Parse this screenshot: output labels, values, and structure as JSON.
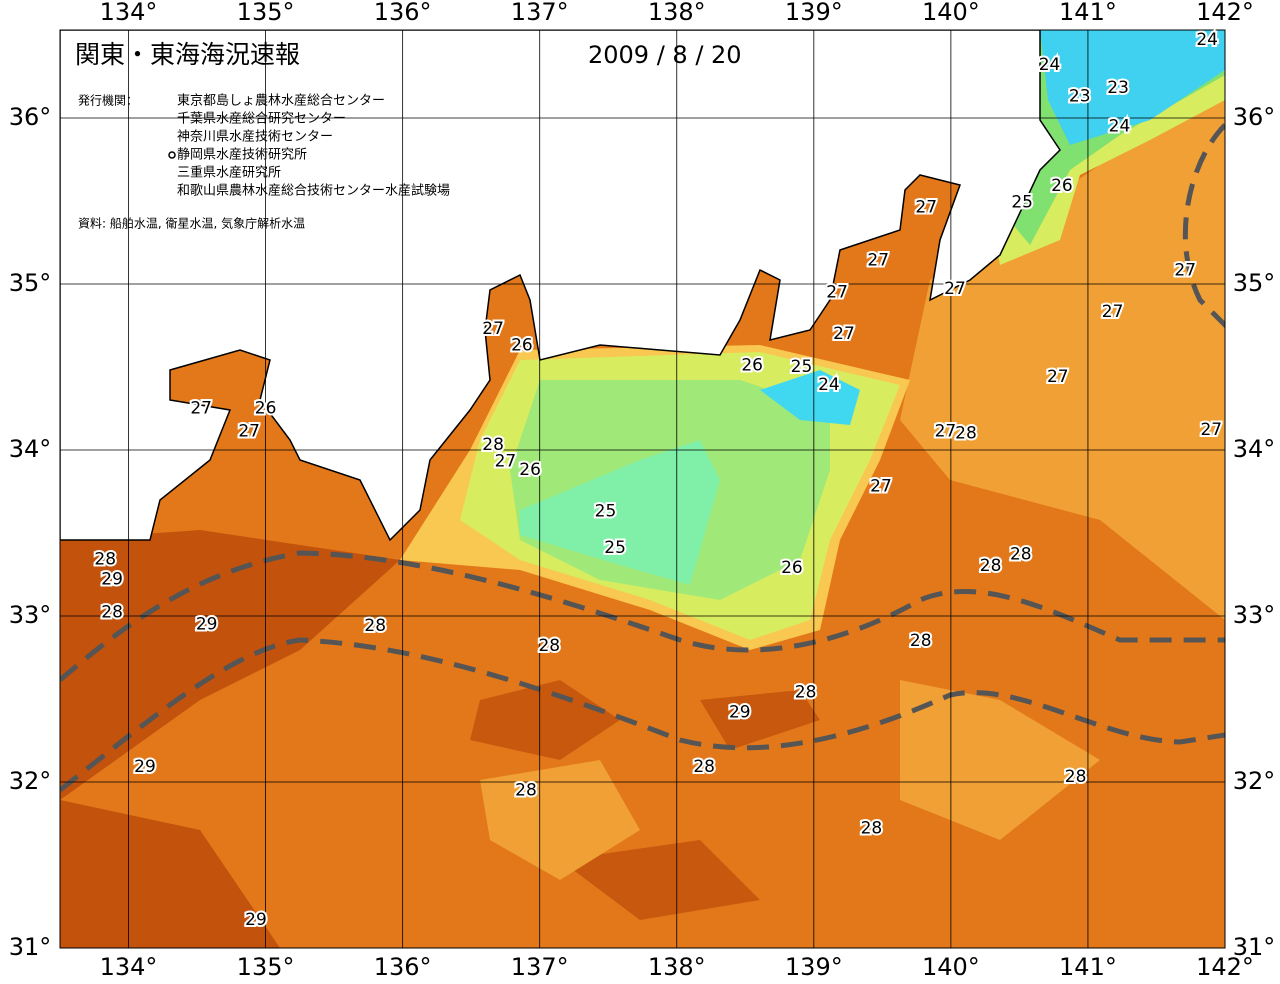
{
  "header": {
    "title": "関東・東海海況速報",
    "date": "2009 / 8 / 20",
    "issuer_label": "発行機関：",
    "issuers": [
      "東京都島しょ農林水産総合センター",
      "千葉県水産総合研究センター",
      "神奈川県水産技術センター",
      "静岡県水産技術研究所",
      "三重県水産研究所",
      "和歌山県農林水産総合技術センター水産試験場"
    ],
    "source": "資料: 船舶水温, 衛星水温, 気象庁解析水温"
  },
  "map": {
    "lon_range": [
      133.5,
      142
    ],
    "lat_range": [
      31,
      36.53
    ],
    "lon_ticks": [
      {
        "value": 134,
        "label": "134°"
      },
      {
        "value": 135,
        "label": "135°"
      },
      {
        "value": 136,
        "label": "136°"
      },
      {
        "value": 137,
        "label": "137°"
      },
      {
        "value": 138,
        "label": "138°"
      },
      {
        "value": 139,
        "label": "139°"
      },
      {
        "value": 140,
        "label": "140°"
      },
      {
        "value": 141,
        "label": "141°"
      },
      {
        "value": 142,
        "label": "142°"
      }
    ],
    "lat_ticks": [
      {
        "value": 31,
        "label": "31°"
      },
      {
        "value": 32,
        "label": "32°"
      },
      {
        "value": 33,
        "label": "33°"
      },
      {
        "value": 34,
        "label": "34°"
      },
      {
        "value": 35,
        "label": "35°"
      },
      {
        "value": 36,
        "label": "36°"
      }
    ],
    "contour_labels": [
      {
        "value": 24,
        "lon": 141.87,
        "lat": 36.47
      },
      {
        "value": 24,
        "lon": 140.72,
        "lat": 36.32
      },
      {
        "value": 23,
        "lon": 140.94,
        "lat": 36.13
      },
      {
        "value": 23,
        "lon": 141.22,
        "lat": 36.18
      },
      {
        "value": 24,
        "lon": 141.23,
        "lat": 35.95
      },
      {
        "value": 26,
        "lon": 140.81,
        "lat": 35.59
      },
      {
        "value": 25,
        "lon": 140.52,
        "lat": 35.49
      },
      {
        "value": 27,
        "lon": 139.82,
        "lat": 35.46
      },
      {
        "value": 27,
        "lon": 139.47,
        "lat": 35.14
      },
      {
        "value": 27,
        "lon": 140.03,
        "lat": 34.97
      },
      {
        "value": 27,
        "lon": 139.17,
        "lat": 34.95
      },
      {
        "value": 27,
        "lon": 141.71,
        "lat": 35.08
      },
      {
        "value": 27,
        "lon": 141.18,
        "lat": 34.83
      },
      {
        "value": 27,
        "lon": 139.22,
        "lat": 34.7
      },
      {
        "value": 27,
        "lon": 136.66,
        "lat": 34.73
      },
      {
        "value": 26,
        "lon": 136.87,
        "lat": 34.63
      },
      {
        "value": 26,
        "lon": 138.55,
        "lat": 34.51
      },
      {
        "value": 25,
        "lon": 138.91,
        "lat": 34.5
      },
      {
        "value": 24,
        "lon": 139.11,
        "lat": 34.39
      },
      {
        "value": 27,
        "lon": 140.78,
        "lat": 34.44
      },
      {
        "value": 27,
        "lon": 134.53,
        "lat": 34.25
      },
      {
        "value": 26,
        "lon": 135.0,
        "lat": 34.25
      },
      {
        "value": 27,
        "lon": 134.88,
        "lat": 34.11
      },
      {
        "value": 27,
        "lon": 139.96,
        "lat": 34.11
      },
      {
        "value": 28,
        "lon": 140.11,
        "lat": 34.1
      },
      {
        "value": 27,
        "lon": 141.9,
        "lat": 34.12
      },
      {
        "value": 28,
        "lon": 136.66,
        "lat": 34.03
      },
      {
        "value": 27,
        "lon": 136.75,
        "lat": 33.93
      },
      {
        "value": 26,
        "lon": 136.93,
        "lat": 33.88
      },
      {
        "value": 27,
        "lon": 139.49,
        "lat": 33.78
      },
      {
        "value": 25,
        "lon": 137.48,
        "lat": 33.63
      },
      {
        "value": 25,
        "lon": 137.55,
        "lat": 33.41
      },
      {
        "value": 26,
        "lon": 138.84,
        "lat": 33.29
      },
      {
        "value": 28,
        "lon": 140.51,
        "lat": 33.37
      },
      {
        "value": 28,
        "lon": 140.29,
        "lat": 33.3
      },
      {
        "value": 28,
        "lon": 133.83,
        "lat": 33.34
      },
      {
        "value": 29,
        "lon": 133.88,
        "lat": 33.22
      },
      {
        "value": 28,
        "lon": 133.88,
        "lat": 33.02
      },
      {
        "value": 29,
        "lon": 134.57,
        "lat": 32.95
      },
      {
        "value": 28,
        "lon": 135.8,
        "lat": 32.94
      },
      {
        "value": 28,
        "lon": 137.07,
        "lat": 32.82
      },
      {
        "value": 28,
        "lon": 139.78,
        "lat": 32.85
      },
      {
        "value": 28,
        "lon": 138.94,
        "lat": 32.54
      },
      {
        "value": 29,
        "lon": 138.46,
        "lat": 32.42
      },
      {
        "value": 28,
        "lon": 138.2,
        "lat": 32.09
      },
      {
        "value": 29,
        "lon": 134.12,
        "lat": 32.09
      },
      {
        "value": 28,
        "lon": 136.9,
        "lat": 31.95
      },
      {
        "value": 28,
        "lon": 140.91,
        "lat": 32.03
      },
      {
        "value": 28,
        "lon": 139.42,
        "lat": 31.72
      },
      {
        "value": 29,
        "lon": 134.93,
        "lat": 31.17
      }
    ]
  }
}
